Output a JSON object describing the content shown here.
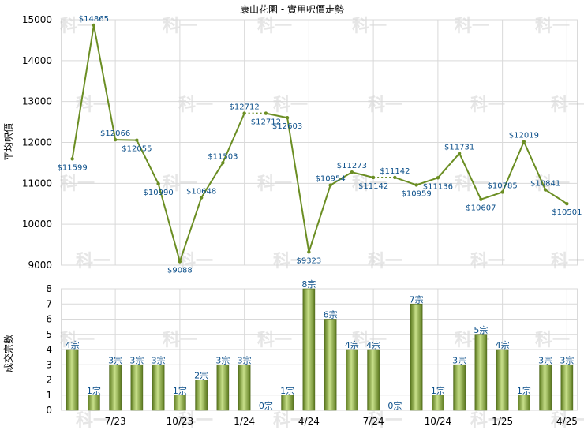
{
  "chart_title": "康山花園 - 實用呎價走勢",
  "watermark": "科一",
  "colors": {
    "line": "#6b8e23",
    "bar_dark": "#5c7a1e",
    "bar_light": "#c8e08a",
    "grid": "#d9d9d9",
    "label": "#0b4f8a"
  },
  "chart_data": [
    {
      "type": "line",
      "title": "康山花園 - 實用呎價走勢",
      "ylabel": "平均呎價",
      "ylim": [
        9000,
        15000
      ],
      "yticks": [
        9000,
        10000,
        11000,
        12000,
        13000,
        14000,
        15000
      ],
      "grid": true,
      "x_tick_labels": [
        "7/23",
        "10/23",
        "1/24",
        "4/24",
        "7/24",
        "10/24",
        "1/25",
        "4/25"
      ],
      "values": [
        11599,
        14865,
        12066,
        12055,
        10990,
        9088,
        10648,
        11503,
        12712,
        12712,
        12603,
        9323,
        10954,
        11273,
        11142,
        11142,
        10959,
        11136,
        11731,
        10607,
        10785,
        12019,
        10841,
        10501
      ],
      "value_labels": [
        "$11599",
        "$14865",
        "$12066",
        "$12055",
        "$10990",
        "$9088",
        "$10648",
        "$11503",
        "$12712",
        "$12712",
        "$12603",
        "$9323",
        "$10954",
        "$11273",
        "$11142",
        "$11142",
        "$10959",
        "$11136",
        "$11731",
        "$10607",
        "$10785",
        "$12019",
        "$10841",
        "$10501"
      ],
      "dotted_segments": [
        8,
        14
      ]
    },
    {
      "type": "bar",
      "ylabel": "成交宗數",
      "ylim": [
        0,
        8
      ],
      "yticks": [
        0,
        1,
        2,
        3,
        4,
        5,
        6,
        7,
        8
      ],
      "grid": true,
      "x_tick_labels": [
        "7/23",
        "10/23",
        "1/24",
        "4/24",
        "7/24",
        "10/24",
        "1/25",
        "4/25"
      ],
      "values": [
        4,
        1,
        3,
        3,
        3,
        1,
        2,
        3,
        3,
        0,
        1,
        8,
        6,
        4,
        4,
        0,
        7,
        1,
        3,
        5,
        4,
        1,
        3,
        3
      ],
      "value_labels": [
        "4宗",
        "1宗",
        "3宗",
        "3宗",
        "3宗",
        "1宗",
        "2宗",
        "3宗",
        "3宗",
        "0宗",
        "1宗",
        "8宗",
        "6宗",
        "4宗",
        "4宗",
        "0宗",
        "7宗",
        "1宗",
        "3宗",
        "5宗",
        "4宗",
        "1宗",
        "3宗",
        "3宗"
      ]
    }
  ]
}
